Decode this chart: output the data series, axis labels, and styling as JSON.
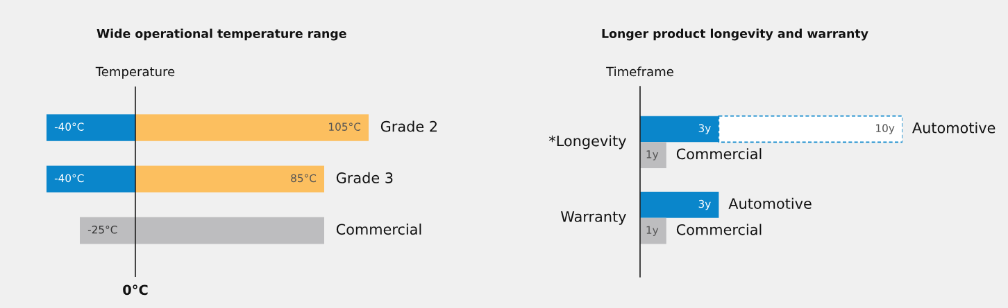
{
  "chart_data": [
    {
      "type": "bar",
      "orientation": "horizontal",
      "stacked": true,
      "title": "Wide operational temperature range",
      "ylabel": "Temperature",
      "categories": [
        "Grade 2",
        "Grade 3",
        "Commercial"
      ],
      "ref_lines": [
        {
          "axis": "x",
          "value": 0,
          "label": "0°C"
        }
      ],
      "series": [
        {
          "color": "#0a86cb",
          "values": [
            -40,
            -40,
            null
          ],
          "value_labels": [
            "-40°C",
            "-40°C",
            null
          ]
        },
        {
          "color": "#fcbf5f",
          "values": [
            105,
            85,
            null
          ],
          "value_labels": [
            "105°C",
            "85°C",
            null
          ]
        },
        {
          "color": "#bdbdbf",
          "values": [
            null,
            null,
            -25
          ],
          "value_labels": [
            null,
            null,
            "-25°C"
          ]
        },
        {
          "color": "#bdbdbf",
          "values": [
            null,
            null,
            85
          ],
          "value_labels": [
            null,
            null,
            null
          ]
        }
      ]
    },
    {
      "type": "bar",
      "orientation": "horizontal",
      "stacked": true,
      "title": "Longer product longevity and warranty",
      "ylabel": "Timeframe",
      "categories": [
        null,
        null,
        null,
        null
      ],
      "annotations": [
        "*Longevity",
        "Warranty"
      ],
      "totals": [
        "10y",
        null,
        null,
        null
      ],
      "series": [
        {
          "name": "Automotive",
          "color": "#0a86cb",
          "values": [
            3,
            null,
            3,
            null
          ],
          "value_labels": [
            "3y",
            null,
            "3y",
            null
          ]
        },
        {
          "color": "#0a86cb",
          "line_style": "dashed",
          "values": [
            7,
            null,
            null,
            null
          ]
        },
        {
          "name": "Commercial",
          "color": "#bdbdbf",
          "values": [
            null,
            1,
            null,
            1
          ],
          "value_labels": [
            null,
            "1y",
            null,
            "1y"
          ]
        }
      ]
    }
  ]
}
